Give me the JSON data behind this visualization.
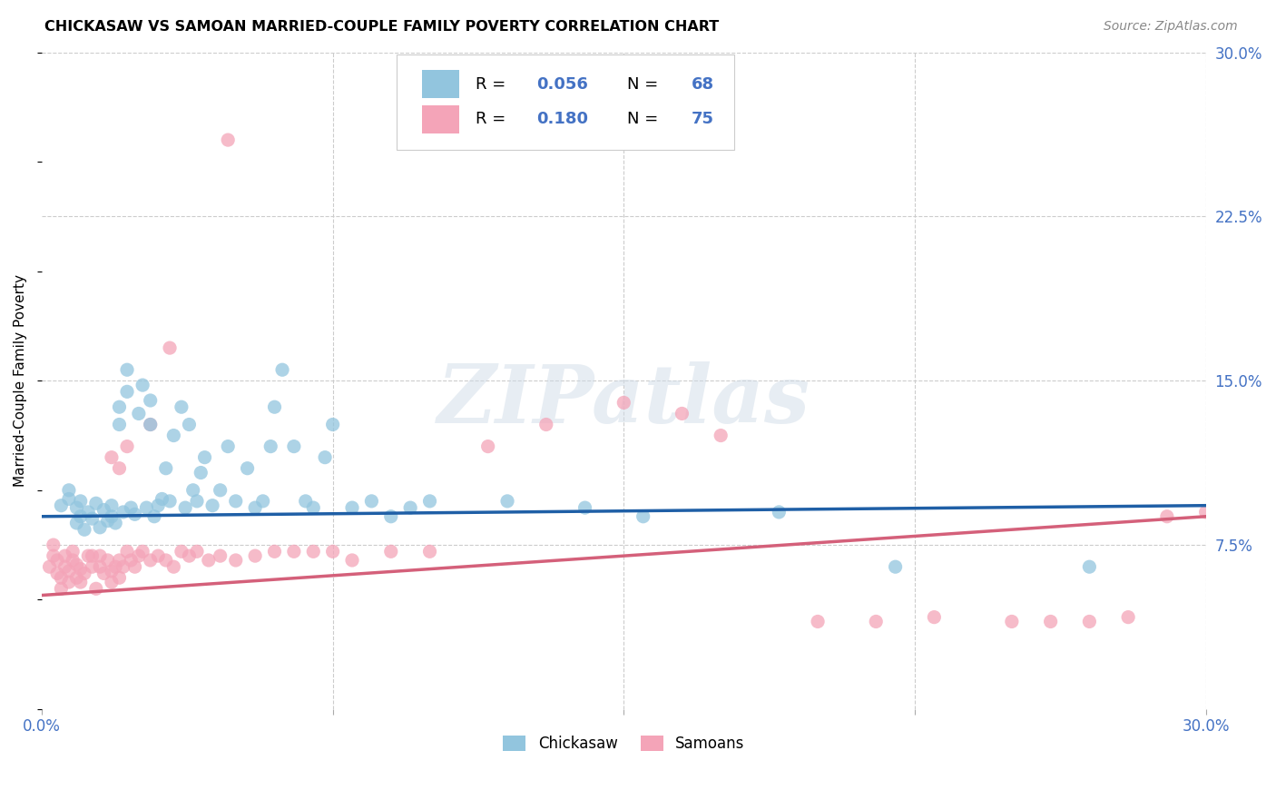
{
  "title": "CHICKASAW VS SAMOAN MARRIED-COUPLE FAMILY POVERTY CORRELATION CHART",
  "source": "Source: ZipAtlas.com",
  "ylabel": "Married-Couple Family Poverty",
  "xlim": [
    0.0,
    0.3
  ],
  "ylim": [
    0.0,
    0.3
  ],
  "watermark_text": "ZIPatlas",
  "chickasaw_color": "#92c5de",
  "samoan_color": "#f4a4b8",
  "trendline1_color": "#1f5fa6",
  "trendline2_color": "#d4607a",
  "background_color": "#ffffff",
  "grid_color": "#cccccc",
  "blue_label_color": "#4472c4",
  "legend_R1": "0.056",
  "legend_N1": "68",
  "legend_R2": "0.180",
  "legend_N2": "75",
  "trendline1_start_y": 0.088,
  "trendline1_end_y": 0.093,
  "trendline2_start_y": 0.052,
  "trendline2_end_y": 0.088,
  "chickasaw_x": [
    0.005,
    0.007,
    0.007,
    0.009,
    0.009,
    0.01,
    0.01,
    0.011,
    0.012,
    0.013,
    0.014,
    0.015,
    0.016,
    0.017,
    0.018,
    0.018,
    0.019,
    0.02,
    0.02,
    0.021,
    0.022,
    0.022,
    0.023,
    0.024,
    0.025,
    0.026,
    0.027,
    0.028,
    0.028,
    0.029,
    0.03,
    0.031,
    0.032,
    0.033,
    0.034,
    0.036,
    0.037,
    0.038,
    0.039,
    0.04,
    0.041,
    0.042,
    0.044,
    0.046,
    0.048,
    0.05,
    0.053,
    0.055,
    0.057,
    0.059,
    0.06,
    0.062,
    0.065,
    0.068,
    0.07,
    0.073,
    0.075,
    0.08,
    0.085,
    0.09,
    0.095,
    0.1,
    0.12,
    0.14,
    0.155,
    0.19,
    0.22,
    0.27
  ],
  "chickasaw_y": [
    0.093,
    0.096,
    0.1,
    0.085,
    0.092,
    0.088,
    0.095,
    0.082,
    0.09,
    0.087,
    0.094,
    0.083,
    0.091,
    0.086,
    0.093,
    0.088,
    0.085,
    0.13,
    0.138,
    0.09,
    0.145,
    0.155,
    0.092,
    0.089,
    0.135,
    0.148,
    0.092,
    0.13,
    0.141,
    0.088,
    0.093,
    0.096,
    0.11,
    0.095,
    0.125,
    0.138,
    0.092,
    0.13,
    0.1,
    0.095,
    0.108,
    0.115,
    0.093,
    0.1,
    0.12,
    0.095,
    0.11,
    0.092,
    0.095,
    0.12,
    0.138,
    0.155,
    0.12,
    0.095,
    0.092,
    0.115,
    0.13,
    0.092,
    0.095,
    0.088,
    0.092,
    0.095,
    0.095,
    0.092,
    0.088,
    0.09,
    0.065,
    0.065
  ],
  "samoan_x": [
    0.002,
    0.003,
    0.003,
    0.004,
    0.004,
    0.005,
    0.005,
    0.006,
    0.006,
    0.007,
    0.007,
    0.008,
    0.008,
    0.009,
    0.009,
    0.01,
    0.01,
    0.011,
    0.012,
    0.013,
    0.013,
    0.014,
    0.015,
    0.015,
    0.016,
    0.017,
    0.018,
    0.018,
    0.019,
    0.02,
    0.02,
    0.021,
    0.022,
    0.023,
    0.024,
    0.025,
    0.026,
    0.028,
    0.03,
    0.032,
    0.034,
    0.036,
    0.038,
    0.04,
    0.043,
    0.046,
    0.05,
    0.055,
    0.06,
    0.065,
    0.07,
    0.075,
    0.08,
    0.09,
    0.1,
    0.115,
    0.13,
    0.15,
    0.165,
    0.175,
    0.2,
    0.215,
    0.23,
    0.25,
    0.26,
    0.27,
    0.28,
    0.29,
    0.3,
    0.048,
    0.033,
    0.028,
    0.022,
    0.02,
    0.018
  ],
  "samoan_y": [
    0.065,
    0.07,
    0.075,
    0.062,
    0.068,
    0.055,
    0.06,
    0.065,
    0.07,
    0.058,
    0.063,
    0.068,
    0.072,
    0.06,
    0.066,
    0.058,
    0.064,
    0.062,
    0.07,
    0.065,
    0.07,
    0.055,
    0.065,
    0.07,
    0.062,
    0.068,
    0.058,
    0.063,
    0.065,
    0.068,
    0.06,
    0.065,
    0.072,
    0.068,
    0.065,
    0.07,
    0.072,
    0.068,
    0.07,
    0.068,
    0.065,
    0.072,
    0.07,
    0.072,
    0.068,
    0.07,
    0.068,
    0.07,
    0.072,
    0.072,
    0.072,
    0.072,
    0.068,
    0.072,
    0.072,
    0.12,
    0.13,
    0.14,
    0.135,
    0.125,
    0.04,
    0.04,
    0.042,
    0.04,
    0.04,
    0.04,
    0.042,
    0.088,
    0.09,
    0.26,
    0.165,
    0.13,
    0.12,
    0.11,
    0.115
  ]
}
